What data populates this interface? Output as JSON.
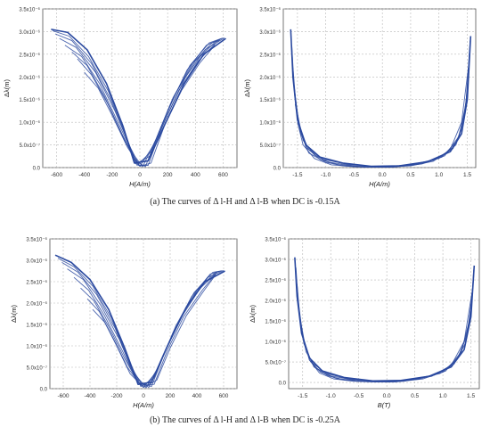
{
  "captions": {
    "a": "(a) The curves of  Δ l-H and Δ l-B when DC is -0.15A",
    "b": "(b) The curves of  Δ l-H and Δ l-B when DC is -0.25A"
  },
  "style": {
    "line_color": "#2b4aa0",
    "grid_color": "#b8b8b8",
    "axis_color": "#555555"
  },
  "chart_data": [
    {
      "id": "a-left",
      "type": "line",
      "xlabel": "H(A/m)",
      "ylabel": "Δλ(m)",
      "xlim": [
        -700,
        700
      ],
      "ylim": [
        0,
        3.5e-06
      ],
      "xticks": [
        -600,
        -400,
        -200,
        0,
        200,
        400,
        600
      ],
      "xtick_labels": [
        "-600",
        "-400",
        "-200",
        "0",
        "200",
        "400",
        "600"
      ],
      "yticks": [
        0,
        5e-07,
        1e-06,
        1.5e-06,
        2e-06,
        2.5e-06,
        3e-06,
        3.5e-06
      ],
      "ytick_labels": [
        "0.0",
        "5.0x10⁻⁷",
        "1.0x10⁻⁶",
        "1.5x10⁻⁶",
        "2.0x10⁻⁶",
        "2.5x10⁻⁶",
        "3.0x10⁻⁶",
        "3.5x10⁻⁶"
      ],
      "grid": true,
      "series": [
        {
          "x": [
            -640,
            -520,
            -380,
            -240,
            -120,
            -40,
            60,
            180,
            320,
            460,
            620
          ],
          "y": [
            3.05e-06,
            2.98e-06,
            2.6e-06,
            1.85e-06,
            9e-07,
            1e-07,
            1.5e-07,
            9.5e-07,
            1.85e-06,
            2.5e-06,
            2.85e-06
          ]
        },
        {
          "x": [
            -630,
            -510,
            -370,
            -230,
            -110,
            -30,
            70,
            190,
            330,
            470,
            610
          ],
          "y": [
            3.02e-06,
            2.9e-06,
            2.45e-06,
            1.7e-06,
            8e-07,
            8e-08,
            2.5e-07,
            1.1e-06,
            2e-06,
            2.6e-06,
            2.86e-06
          ]
        },
        {
          "x": [
            -610,
            -490,
            -350,
            -210,
            -95,
            -20,
            80,
            200,
            340,
            480,
            600
          ],
          "y": [
            2.95e-06,
            2.8e-06,
            2.3e-06,
            1.5e-06,
            6.5e-07,
            5e-08,
            3.5e-07,
            1.25e-06,
            2.15e-06,
            2.7e-06,
            2.86e-06
          ]
        },
        {
          "x": [
            -580,
            -460,
            -320,
            -180,
            -70,
            0,
            100,
            220,
            360,
            500,
            590
          ],
          "y": [
            2.85e-06,
            2.65e-06,
            2.1e-06,
            1.25e-06,
            4.5e-07,
            3e-08,
            5e-07,
            1.4e-06,
            2.25e-06,
            2.75e-06,
            2.85e-06
          ]
        },
        {
          "x": [
            -540,
            -420,
            -290,
            -150,
            -50,
            20,
            120,
            240,
            380,
            520,
            580
          ],
          "y": [
            2.7e-06,
            2.45e-06,
            1.85e-06,
            9.5e-07,
            3e-07,
            2e-08,
            6.5e-07,
            1.55e-06,
            2.3e-06,
            2.75e-06,
            2.82e-06
          ]
        },
        {
          "x": [
            -490,
            -380,
            -260,
            -130,
            -30,
            40,
            140,
            260,
            400,
            540,
            570
          ],
          "y": [
            2.55e-06,
            2.25e-06,
            1.6e-06,
            7.5e-07,
            1.5e-07,
            2e-08,
            8e-07,
            1.65e-06,
            2.35e-06,
            2.76e-06,
            2.8e-06
          ]
        },
        {
          "x": [
            -450,
            -350,
            -230,
            -110,
            -10,
            60,
            160,
            280,
            420,
            550
          ],
          "y": [
            2.4e-06,
            2.05e-06,
            1.4e-06,
            6e-07,
            5e-08,
            5e-08,
            9e-07,
            1.7e-06,
            2.35e-06,
            2.75e-06
          ]
        },
        {
          "x": [
            -400,
            -300,
            -200,
            -90,
            0,
            80,
            180,
            300,
            430,
            540
          ],
          "y": [
            2.1e-06,
            1.75e-06,
            1.15e-06,
            4.5e-07,
            3e-08,
            1e-07,
            9.5e-07,
            1.7e-06,
            2.3e-06,
            2.7e-06
          ]
        }
      ]
    },
    {
      "id": "a-right",
      "type": "line",
      "xlabel": "H(A/m)",
      "ylabel": "Δλ(m)",
      "xlim": [
        -1.75,
        1.65
      ],
      "ylim": [
        0,
        3.5e-06
      ],
      "xticks": [
        -1.5,
        -1.0,
        -0.5,
        0.0,
        0.5,
        1.0,
        1.5
      ],
      "xtick_labels": [
        "-1.5",
        "-1.0",
        "-0.5",
        "0.0",
        "0.5",
        "1.0",
        "1.5"
      ],
      "yticks": [
        0,
        5e-07,
        1e-06,
        1.5e-06,
        2e-06,
        2.5e-06,
        3e-06,
        3.5e-06
      ],
      "ytick_labels": [
        "0.0",
        "5.0x10⁻⁷",
        "1.0x10⁻⁶",
        "1.5x10⁻⁶",
        "2.0x10⁻⁶",
        "2.5x10⁻⁶",
        "3.0x10⁻⁶",
        "3.5x10⁻⁶"
      ],
      "grid": true,
      "series": [
        {
          "x": [
            -1.62,
            -1.58,
            -1.5,
            -1.35,
            -1.1,
            -0.7,
            -0.2,
            0.3,
            0.8,
            1.2,
            1.4,
            1.5,
            1.56
          ],
          "y": [
            3.05e-06,
            2e-06,
            1.05e-06,
            5e-07,
            2.3e-07,
            1e-07,
            3e-08,
            4e-08,
            1.3e-07,
            3.5e-07,
            7.5e-07,
            1.5e-06,
            2.9e-06
          ]
        },
        {
          "x": [
            -1.6,
            -1.55,
            -1.45,
            -1.3,
            -1.05,
            -0.6,
            -0.1,
            0.4,
            0.9,
            1.25,
            1.42,
            1.51,
            1.55
          ],
          "y": [
            2.7e-06,
            1.6e-06,
            8e-07,
            4e-07,
            1.8e-07,
            7e-08,
            2e-08,
            5e-08,
            1.6e-07,
            4.2e-07,
            9e-07,
            1.8e-06,
            2.8e-06
          ]
        },
        {
          "x": [
            -1.58,
            -1.52,
            -1.4,
            -1.2,
            -0.95,
            -0.5,
            0.0,
            0.5,
            1.0,
            1.3,
            1.45,
            1.52,
            1.55
          ],
          "y": [
            2.2e-06,
            1.3e-06,
            6e-07,
            2.8e-07,
            1.2e-07,
            4e-08,
            1e-08,
            6e-08,
            2e-07,
            5e-07,
            1.1e-06,
            2e-06,
            2.7e-06
          ]
        },
        {
          "x": [
            -1.56,
            -1.48,
            -1.35,
            -1.1,
            -0.8,
            -0.4,
            0.1,
            0.6,
            1.05,
            1.33,
            1.47,
            1.53
          ],
          "y": [
            1.8e-06,
            1e-06,
            4.5e-07,
            1.8e-07,
            7e-08,
            2e-08,
            1e-08,
            7e-08,
            2.3e-07,
            6e-07,
            1.3e-06,
            2.4e-06
          ]
        },
        {
          "x": [
            -1.54,
            -1.44,
            -1.3,
            -1.0,
            -0.7,
            -0.3,
            0.2,
            0.7,
            1.1,
            1.36,
            1.49,
            1.54
          ],
          "y": [
            1.4e-06,
            7.5e-07,
            3.2e-07,
            1.2e-07,
            4e-08,
            1e-08,
            1e-08,
            8e-08,
            2.6e-07,
            7e-07,
            1.5e-06,
            2.6e-06
          ]
        },
        {
          "x": [
            -1.5,
            -1.4,
            -1.2,
            -0.9,
            -0.5,
            0.0,
            0.5,
            0.9,
            1.2,
            1.4,
            1.52
          ],
          "y": [
            1e-06,
            5e-07,
            2e-07,
            6e-08,
            2e-08,
            1e-08,
            4e-08,
            1.4e-07,
            4e-07,
            1e-06,
            2.2e-06
          ]
        }
      ]
    },
    {
      "id": "b-left",
      "type": "line",
      "xlabel": "H(A/m)",
      "ylabel": "Δλ(m)",
      "xlim": [
        -700,
        700
      ],
      "ylim": [
        0,
        3.5e-06
      ],
      "xticks": [
        -600,
        -400,
        -200,
        0,
        200,
        400,
        600
      ],
      "xtick_labels": [
        "-600",
        "-400",
        "-200",
        "0",
        "200",
        "400",
        "600"
      ],
      "yticks": [
        0,
        5e-07,
        1e-06,
        1.5e-06,
        2e-06,
        2.5e-06,
        3e-06,
        3.5e-06
      ],
      "ytick_labels": [
        "0.0",
        "5.0x10⁻⁷",
        "1.0x10⁻⁶",
        "1.5x10⁻⁶",
        "2.0x10⁻⁶",
        "2.5x10⁻⁶",
        "3.0x10⁻⁶",
        "3.5x10⁻⁶"
      ],
      "grid": true,
      "series": [
        {
          "x": [
            -660,
            -540,
            -400,
            -260,
            -140,
            -40,
            60,
            180,
            320,
            460,
            610
          ],
          "y": [
            3.12e-06,
            2.95e-06,
            2.55e-06,
            1.85e-06,
            9.5e-07,
            1e-07,
            1.5e-07,
            1e-06,
            1.9e-06,
            2.5e-06,
            2.75e-06
          ]
        },
        {
          "x": [
            -640,
            -520,
            -380,
            -240,
            -120,
            -20,
            80,
            200,
            340,
            480,
            600
          ],
          "y": [
            3.05e-06,
            2.85e-06,
            2.4e-06,
            1.65e-06,
            7.5e-07,
            5e-08,
            2.5e-07,
            1.15e-06,
            2e-06,
            2.6e-06,
            2.76e-06
          ]
        },
        {
          "x": [
            -610,
            -490,
            -350,
            -210,
            -100,
            0,
            100,
            220,
            360,
            500,
            590
          ],
          "y": [
            2.95e-06,
            2.72e-06,
            2.2e-06,
            1.4e-06,
            5.5e-07,
            3e-08,
            4e-07,
            1.3e-06,
            2.15e-06,
            2.68e-06,
            2.76e-06
          ]
        },
        {
          "x": [
            -570,
            -450,
            -320,
            -180,
            -80,
            20,
            120,
            240,
            380,
            520,
            580
          ],
          "y": [
            2.8e-06,
            2.55e-06,
            1.95e-06,
            1.15e-06,
            4e-07,
            2e-08,
            5.5e-07,
            1.45e-06,
            2.25e-06,
            2.72e-06,
            2.75e-06
          ]
        },
        {
          "x": [
            -520,
            -410,
            -290,
            -160,
            -60,
            40,
            140,
            260,
            400,
            540,
            570
          ],
          "y": [
            2.6e-06,
            2.3e-06,
            1.7e-06,
            9e-07,
            2.5e-07,
            3e-08,
            7e-07,
            1.55e-06,
            2.3e-06,
            2.72e-06,
            2.74e-06
          ]
        },
        {
          "x": [
            -470,
            -370,
            -260,
            -140,
            -40,
            60,
            160,
            280,
            420,
            550
          ],
          "y": [
            2.35e-06,
            2.05e-06,
            1.45e-06,
            7e-07,
            1.5e-07,
            5e-08,
            8.5e-07,
            1.65e-06,
            2.33e-06,
            2.72e-06
          ]
        },
        {
          "x": [
            -420,
            -330,
            -230,
            -120,
            -20,
            80,
            180,
            300,
            440,
            545
          ],
          "y": [
            2.1e-06,
            1.8e-06,
            1.2e-06,
            5e-07,
            8e-08,
            1e-07,
            9e-07,
            1.68e-06,
            2.3e-06,
            2.7e-06
          ]
        },
        {
          "x": [
            -380,
            -290,
            -200,
            -100,
            0,
            100,
            200,
            320,
            450,
            540
          ],
          "y": [
            1.85e-06,
            1.55e-06,
            1e-06,
            3.5e-07,
            3e-08,
            2e-07,
            9.5e-07,
            1.7e-06,
            2.28e-06,
            2.66e-06
          ]
        }
      ]
    },
    {
      "id": "b-right",
      "type": "line",
      "xlabel": "B(T)",
      "ylabel": "Δλ(m)",
      "xlim": [
        -1.75,
        1.65
      ],
      "ylim": [
        -1.5e-07,
        3.5e-06
      ],
      "xticks": [
        -1.5,
        -1.0,
        -0.5,
        0.0,
        0.5,
        1.0,
        1.5
      ],
      "xtick_labels": [
        "-1.5",
        "-1.0",
        "-0.5",
        "0.0",
        "0.5",
        "1.0",
        "1.5"
      ],
      "yticks": [
        0,
        5e-07,
        1e-06,
        1.5e-06,
        2e-06,
        2.5e-06,
        3e-06,
        3.5e-06
      ],
      "ytick_labels": [
        "0.0",
        "5.0x10⁻⁷",
        "1.0x10⁻⁶",
        "1.5x10⁻⁶",
        "2.0x10⁻⁶",
        "2.5x10⁻⁶",
        "3.0x10⁻⁶",
        "3.5x10⁻⁶"
      ],
      "grid": true,
      "series": [
        {
          "x": [
            -1.64,
            -1.6,
            -1.52,
            -1.38,
            -1.15,
            -0.75,
            -0.25,
            0.25,
            0.75,
            1.15,
            1.38,
            1.5,
            1.56
          ],
          "y": [
            3.05e-06,
            2.1e-06,
            1.2e-06,
            6e-07,
            2.8e-07,
            1.2e-07,
            4e-08,
            5e-08,
            1.5e-07,
            3.8e-07,
            8e-07,
            1.6e-06,
            2.85e-06
          ]
        },
        {
          "x": [
            -1.62,
            -1.57,
            -1.48,
            -1.33,
            -1.08,
            -0.65,
            -0.15,
            0.35,
            0.85,
            1.2,
            1.4,
            1.51,
            1.55
          ],
          "y": [
            2.8e-06,
            1.8e-06,
            9.5e-07,
            4.8e-07,
            2.2e-07,
            8e-08,
            3e-08,
            6e-08,
            1.8e-07,
            4.5e-07,
            9.5e-07,
            1.85e-06,
            2.75e-06
          ]
        },
        {
          "x": [
            -1.6,
            -1.54,
            -1.44,
            -1.27,
            -1.0,
            -0.55,
            -0.05,
            0.45,
            0.95,
            1.25,
            1.43,
            1.52,
            1.55
          ],
          "y": [
            2.4e-06,
            1.45e-06,
            7.5e-07,
            3.6e-07,
            1.6e-07,
            5e-08,
            2e-08,
            7e-08,
            2.2e-07,
            5.5e-07,
            1.15e-06,
            2.05e-06,
            2.6e-06
          ]
        },
        {
          "x": [
            -1.58,
            -1.5,
            -1.38,
            -1.18,
            -0.9,
            -0.45,
            0.05,
            0.55,
            1.0,
            1.3,
            1.46,
            1.53
          ],
          "y": [
            2e-06,
            1.15e-06,
            5.5e-07,
            2.5e-07,
            1e-07,
            3e-08,
            1e-08,
            8e-08,
            2.5e-07,
            6.5e-07,
            1.35e-06,
            2.3e-06
          ]
        },
        {
          "x": [
            -1.55,
            -1.45,
            -1.3,
            -1.05,
            -0.75,
            -0.35,
            0.15,
            0.65,
            1.05,
            1.33,
            1.48,
            1.54
          ],
          "y": [
            1.6e-06,
            8.5e-07,
            3.8e-07,
            1.6e-07,
            6e-08,
            2e-08,
            1e-08,
            9e-08,
            2.8e-07,
            7.5e-07,
            1.55e-06,
            2.45e-06
          ]
        },
        {
          "x": [
            -1.5,
            -1.38,
            -1.2,
            -0.95,
            -0.6,
            -0.2,
            0.3,
            0.8,
            1.15,
            1.38,
            1.52
          ],
          "y": [
            1.15e-06,
            5.5e-07,
            2.3e-07,
            9e-08,
            3e-08,
            1e-08,
            3e-08,
            1.5e-07,
            4.2e-07,
            1e-06,
            2.2e-06
          ]
        }
      ]
    }
  ]
}
